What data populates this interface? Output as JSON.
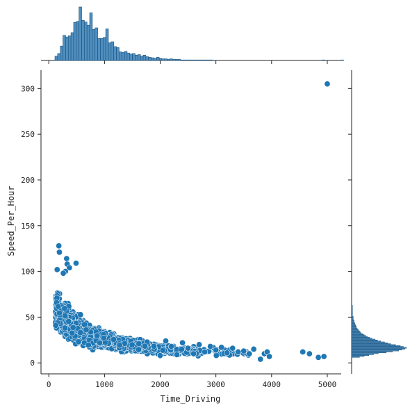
{
  "chart_data": {
    "type": "scatter",
    "kind": "jointplot",
    "xlabel": "Time_Driving",
    "ylabel": "Speed_Per_Hour",
    "xlim": [
      -140,
      5250
    ],
    "ylim": [
      -12,
      320
    ],
    "x_ticks": [
      0,
      1000,
      2000,
      3000,
      4000,
      5000
    ],
    "y_ticks": [
      0,
      50,
      100,
      150,
      200,
      250,
      300
    ],
    "grid": false,
    "point_color": "#1f77b4",
    "hist_color": "#4f8fc0",
    "bulk_trend_x": [
      120,
      200,
      300,
      400,
      500,
      600,
      800,
      1000,
      1200,
      1500,
      1800,
      2000,
      2500,
      3000,
      3500
    ],
    "bulk_trend_y": [
      62,
      52,
      46,
      40,
      37,
      34,
      29,
      25,
      22,
      19,
      17,
      15,
      13,
      12,
      11
    ],
    "points": [
      {
        "x": 5000,
        "y": 305
      },
      {
        "x": 180,
        "y": 128
      },
      {
        "x": 190,
        "y": 121
      },
      {
        "x": 150,
        "y": 102
      },
      {
        "x": 320,
        "y": 114
      },
      {
        "x": 330,
        "y": 108
      },
      {
        "x": 490,
        "y": 109
      },
      {
        "x": 370,
        "y": 104
      },
      {
        "x": 300,
        "y": 100
      },
      {
        "x": 260,
        "y": 98
      },
      {
        "x": 4560,
        "y": 12
      },
      {
        "x": 4680,
        "y": 10
      },
      {
        "x": 4840,
        "y": 6
      },
      {
        "x": 4940,
        "y": 7
      },
      {
        "x": 3800,
        "y": 4
      },
      {
        "x": 3870,
        "y": 10
      },
      {
        "x": 3920,
        "y": 12
      },
      {
        "x": 3960,
        "y": 7
      },
      {
        "x": 3680,
        "y": 15
      },
      {
        "x": 3600,
        "y": 10
      },
      {
        "x": 3500,
        "y": 13
      },
      {
        "x": 3400,
        "y": 12
      },
      {
        "x": 3300,
        "y": 16
      },
      {
        "x": 3200,
        "y": 11
      },
      {
        "x": 3100,
        "y": 17
      },
      {
        "x": 3000,
        "y": 14
      },
      {
        "x": 2900,
        "y": 18
      },
      {
        "x": 2800,
        "y": 12
      },
      {
        "x": 2700,
        "y": 20
      },
      {
        "x": 2600,
        "y": 10
      },
      {
        "x": 2500,
        "y": 16
      },
      {
        "x": 2400,
        "y": 22
      },
      {
        "x": 2300,
        "y": 9
      },
      {
        "x": 2200,
        "y": 18
      },
      {
        "x": 2100,
        "y": 24
      },
      {
        "x": 2000,
        "y": 8
      }
    ],
    "x_histogram": {
      "bin_edges_start": 110,
      "bin_width": 48,
      "counts": [
        8,
        13,
        27,
        47,
        44,
        46,
        52,
        71,
        73,
        100,
        75,
        72,
        66,
        89,
        58,
        61,
        41,
        41,
        43,
        59,
        33,
        35,
        26,
        24,
        16,
        15,
        17,
        14,
        12,
        13,
        10,
        11,
        8,
        10,
        7,
        6,
        5,
        4,
        6,
        4,
        3,
        3,
        2,
        3,
        2,
        2,
        2,
        1,
        1,
        1,
        1,
        1,
        1,
        1,
        1,
        1,
        1,
        1,
        1,
        0,
        0,
        0,
        0,
        0,
        0,
        0,
        0,
        0,
        0,
        0,
        0,
        0,
        0,
        0,
        0,
        0,
        0,
        0,
        0,
        0,
        0,
        0,
        0,
        0,
        0,
        0,
        0,
        0,
        0,
        0,
        0,
        0,
        0,
        0,
        0,
        0,
        0,
        0,
        0,
        0,
        1,
        0,
        0,
        0,
        0,
        0,
        0,
        1,
        0,
        0
      ]
    },
    "y_histogram": {
      "bin_edges_start": 6,
      "bin_width": 1,
      "counts": [
        10,
        16,
        22,
        28,
        34,
        44,
        52,
        60,
        64,
        68,
        70,
        66,
        62,
        56,
        50,
        46,
        42,
        37,
        33,
        30,
        26,
        23,
        20,
        18,
        16,
        14,
        12,
        11,
        10,
        9,
        8,
        7,
        6,
        6,
        5,
        5,
        4,
        4,
        3,
        3,
        3,
        2,
        2,
        2,
        2,
        1,
        1,
        1,
        1,
        1,
        1,
        1,
        1,
        1,
        1,
        1,
        1,
        0,
        0,
        0,
        0,
        0,
        0,
        0,
        0,
        0,
        0,
        0,
        0,
        0,
        0,
        0
      ]
    }
  }
}
